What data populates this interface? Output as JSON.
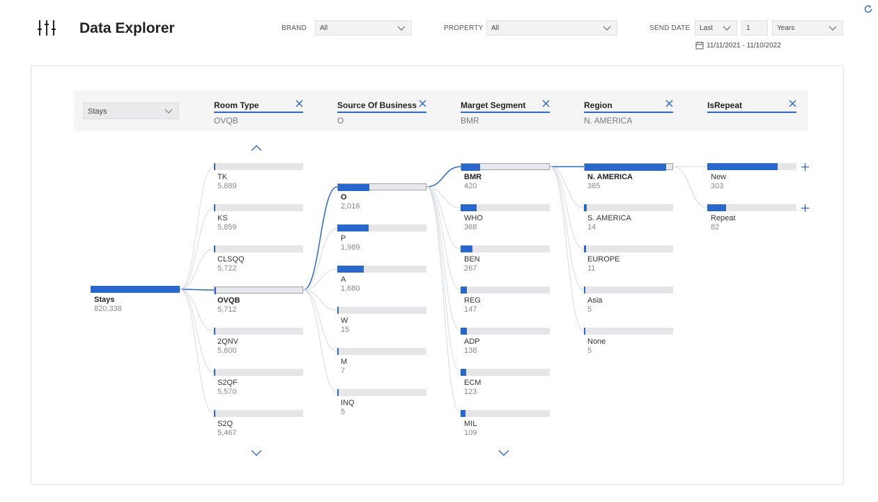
{
  "app": {
    "title": "Data Explorer",
    "icon": "sliders-icon"
  },
  "filters": {
    "brand": {
      "label": "BRAND",
      "value": "All"
    },
    "property": {
      "label": "PROPERTY",
      "value": "All"
    },
    "send_date": {
      "label": "SEND DATE",
      "mode": "Last",
      "count": "1",
      "unit": "Years",
      "range": "11/11/2021 - 11/10/2022"
    }
  },
  "metric": {
    "value": "Stays"
  },
  "levels": [
    {
      "name": "Room Type",
      "value": "OVQB"
    },
    {
      "name": "Source Of Business",
      "value": "O"
    },
    {
      "name": "Marget Segment",
      "value": "BMR"
    },
    {
      "name": "Region",
      "value": "N. AMERICA"
    },
    {
      "name": "IsRepeat",
      "value": ""
    }
  ],
  "root": {
    "label": "Stays",
    "value": "820,338",
    "fraction": 1.0
  },
  "columns": [
    {
      "nodes": [
        {
          "label": "TK",
          "value": "5,889",
          "fraction": 0.007
        },
        {
          "label": "KS",
          "value": "5,859",
          "fraction": 0.007
        },
        {
          "label": "CLSQQ",
          "value": "5,722",
          "fraction": 0.007
        },
        {
          "label": "OVQB",
          "value": "5,712",
          "fraction": 0.007,
          "selected": true
        },
        {
          "label": "2QNV",
          "value": "5,600",
          "fraction": 0.007
        },
        {
          "label": "S2QF",
          "value": "5,570",
          "fraction": 0.007
        },
        {
          "label": "S2Q",
          "value": "5,467",
          "fraction": 0.007
        }
      ]
    },
    {
      "nodes": [
        {
          "label": "O",
          "value": "2,016",
          "fraction": 0.353,
          "selected": true
        },
        {
          "label": "P",
          "value": "1,989",
          "fraction": 0.348
        },
        {
          "label": "A",
          "value": "1,680",
          "fraction": 0.294
        },
        {
          "label": "W",
          "value": "15",
          "fraction": 0.003
        },
        {
          "label": "M",
          "value": "7",
          "fraction": 0.001
        },
        {
          "label": "INQ",
          "value": "5",
          "fraction": 0.001
        }
      ]
    },
    {
      "nodes": [
        {
          "label": "BMR",
          "value": "420",
          "fraction": 0.208,
          "selected": true
        },
        {
          "label": "WHO",
          "value": "368",
          "fraction": 0.183
        },
        {
          "label": "BEN",
          "value": "267",
          "fraction": 0.132
        },
        {
          "label": "REG",
          "value": "147",
          "fraction": 0.073
        },
        {
          "label": "ADP",
          "value": "138",
          "fraction": 0.068
        },
        {
          "label": "ECM",
          "value": "123",
          "fraction": 0.061
        },
        {
          "label": "MIL",
          "value": "109",
          "fraction": 0.054
        }
      ]
    },
    {
      "nodes": [
        {
          "label": "N. AMERICA",
          "value": "385",
          "fraction": 0.917,
          "selected": true
        },
        {
          "label": "S. AMERICA",
          "value": "14",
          "fraction": 0.033
        },
        {
          "label": "EUROPE",
          "value": "11",
          "fraction": 0.026
        },
        {
          "label": "Asia",
          "value": "5",
          "fraction": 0.012
        },
        {
          "label": "None",
          "value": "5",
          "fraction": 0.012
        }
      ]
    },
    {
      "nodes": [
        {
          "label": "New",
          "value": "303",
          "fraction": 0.787
        },
        {
          "label": "Repeat",
          "value": "82",
          "fraction": 0.213
        }
      ]
    }
  ],
  "colors": {
    "accent": "#2867cc",
    "track": "#e6e6e8"
  }
}
